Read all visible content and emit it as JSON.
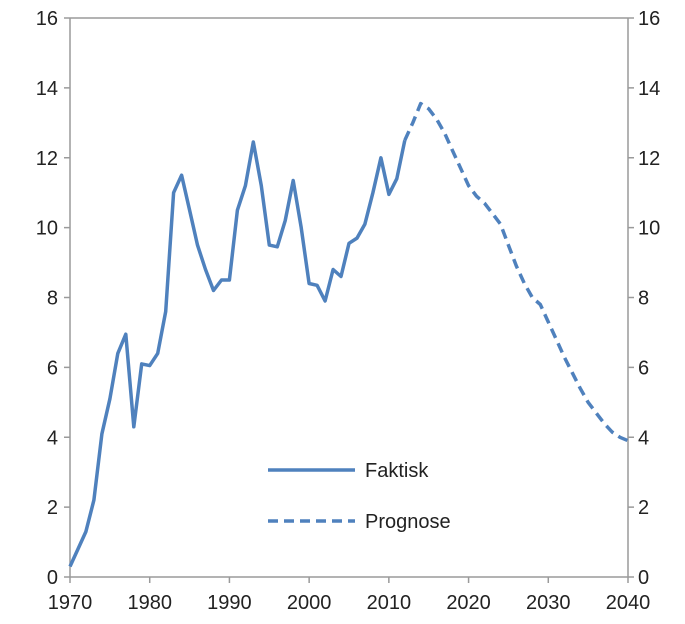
{
  "chart_data": {
    "type": "line",
    "title": "",
    "xlabel": "",
    "ylabel": "",
    "xlim": [
      1970,
      2040
    ],
    "ylim": [
      0,
      16
    ],
    "x_ticks": [
      1970,
      1980,
      1990,
      2000,
      2010,
      2020,
      2030,
      2040
    ],
    "y_ticks": [
      0,
      2,
      4,
      6,
      8,
      10,
      12,
      14,
      16
    ],
    "y_axis_both_sides": true,
    "grid": false,
    "legend_position": "bottom-center",
    "series": [
      {
        "name": "Faktisk",
        "style": "solid",
        "color": "#4F81BD",
        "points": [
          [
            1970,
            0.3
          ],
          [
            1971,
            0.8
          ],
          [
            1972,
            1.3
          ],
          [
            1973,
            2.2
          ],
          [
            1974,
            4.1
          ],
          [
            1975,
            5.1
          ],
          [
            1976,
            6.4
          ],
          [
            1977,
            6.95
          ],
          [
            1978,
            4.3
          ],
          [
            1979,
            6.1
          ],
          [
            1980,
            6.05
          ],
          [
            1981,
            6.4
          ],
          [
            1982,
            7.6
          ],
          [
            1983,
            11.0
          ],
          [
            1984,
            11.5
          ],
          [
            1985,
            10.5
          ],
          [
            1986,
            9.5
          ],
          [
            1987,
            8.8
          ],
          [
            1988,
            8.2
          ],
          [
            1989,
            8.5
          ],
          [
            1990,
            8.5
          ],
          [
            1991,
            10.5
          ],
          [
            1992,
            11.2
          ],
          [
            1993,
            12.45
          ],
          [
            1994,
            11.2
          ],
          [
            1995,
            9.5
          ],
          [
            1996,
            9.45
          ],
          [
            1997,
            10.2
          ],
          [
            1998,
            11.35
          ],
          [
            1999,
            10.0
          ],
          [
            2000,
            8.4
          ],
          [
            2001,
            8.35
          ],
          [
            2002,
            7.9
          ],
          [
            2003,
            8.8
          ],
          [
            2004,
            8.6
          ],
          [
            2005,
            9.55
          ],
          [
            2006,
            9.7
          ],
          [
            2007,
            10.1
          ],
          [
            2008,
            11.0
          ],
          [
            2009,
            12.0
          ],
          [
            2010,
            10.95
          ],
          [
            2011,
            11.4
          ],
          [
            2012,
            12.5
          ]
        ]
      },
      {
        "name": "Prognose",
        "style": "dashed",
        "color": "#4F81BD",
        "points": [
          [
            2012,
            12.5
          ],
          [
            2013,
            13.0
          ],
          [
            2014,
            13.55
          ],
          [
            2015,
            13.4
          ],
          [
            2016,
            13.1
          ],
          [
            2017,
            12.7
          ],
          [
            2018,
            12.2
          ],
          [
            2019,
            11.7
          ],
          [
            2020,
            11.2
          ],
          [
            2021,
            10.9
          ],
          [
            2022,
            10.7
          ],
          [
            2023,
            10.4
          ],
          [
            2024,
            10.1
          ],
          [
            2025,
            9.5
          ],
          [
            2026,
            8.9
          ],
          [
            2027,
            8.4
          ],
          [
            2028,
            8.0
          ],
          [
            2029,
            7.8
          ],
          [
            2030,
            7.3
          ],
          [
            2031,
            6.8
          ],
          [
            2032,
            6.3
          ],
          [
            2033,
            5.85
          ],
          [
            2034,
            5.4
          ],
          [
            2035,
            5.0
          ],
          [
            2036,
            4.7
          ],
          [
            2037,
            4.4
          ],
          [
            2038,
            4.15
          ],
          [
            2039,
            4.0
          ],
          [
            2040,
            3.9
          ]
        ]
      }
    ]
  }
}
